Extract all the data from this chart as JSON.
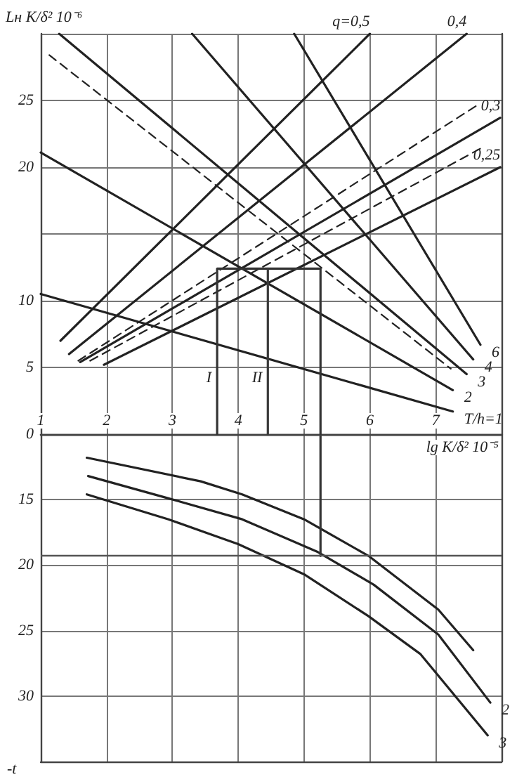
{
  "chart_data": [
    {
      "type": "line",
      "ylabel": "Lн K/δ² 10⁻⁶",
      "xlabel": "lg K/δ² 10⁻⁵",
      "marker": "none",
      "grid": true,
      "xlim": [
        1,
        8
      ],
      "xticks": [
        1,
        2,
        3,
        4,
        5,
        6,
        7
      ],
      "ylim": [
        0,
        30
      ],
      "yticks": [
        0,
        5,
        10,
        20,
        25
      ],
      "series": [
        {
          "name": "q=0,5",
          "color": "#222222",
          "x": [
            1.3,
            6.0
          ],
          "values": [
            7.0,
            30
          ]
        },
        {
          "name": "0,4",
          "color": "#222222",
          "x": [
            1.43,
            7.47
          ],
          "values": [
            6.0,
            30
          ]
        },
        {
          "color": "#222222",
          "line_style": "dashed",
          "x": [
            1.57,
            7.68
          ],
          "values": [
            5.5,
            24.8
          ]
        },
        {
          "name": "0,3",
          "color": "#222222",
          "x": [
            1.6,
            7.98
          ],
          "values": [
            5.4,
            23.7
          ]
        },
        {
          "color": "#222222",
          "line_style": "dashed",
          "x": [
            1.75,
            7.68
          ],
          "values": [
            5.5,
            21.4
          ]
        },
        {
          "name": "0,25",
          "color": "#222222",
          "x": [
            1.96,
            7.98
          ],
          "values": [
            5.2,
            20.0
          ]
        },
        {
          "name": "T/h=1",
          "color": "#222222",
          "x": [
            1,
            7.26
          ],
          "values": [
            10.5,
            1.7
          ]
        },
        {
          "name": "2",
          "color": "#222222",
          "x": [
            1,
            7.26
          ],
          "values": [
            21.1,
            3.3
          ]
        },
        {
          "color": "#222222",
          "line_style": "dashed",
          "x": [
            1.13,
            7.23
          ],
          "values": [
            28.4,
            4.9
          ]
        },
        {
          "name": "3",
          "color": "#222222",
          "x": [
            1.28,
            7.47
          ],
          "values": [
            30,
            4.5
          ]
        },
        {
          "name": "4",
          "color": "#222222",
          "x": [
            3.3,
            7.57
          ],
          "values": [
            30,
            5.6
          ]
        },
        {
          "name": "6",
          "color": "#222222",
          "x": [
            4.85,
            7.68
          ],
          "values": [
            30,
            6.7
          ]
        },
        {
          "name": "I",
          "color": "#333333",
          "x": [
            5.25,
            5.25,
            3.68,
            3.68
          ],
          "values": [
            0,
            12.4,
            12.4,
            0
          ]
        },
        {
          "name": "II",
          "color": "#3a3a3a",
          "x": [
            4.45,
            4.45
          ],
          "values": [
            12.4,
            0
          ]
        }
      ]
    },
    {
      "type": "line",
      "ylabel": "-t",
      "marker": "none",
      "grid": true,
      "tick_labels": "y",
      "xlim": [
        1,
        8
      ],
      "xticks": [
        1,
        2,
        3,
        4,
        5,
        6,
        7
      ],
      "ylim": [
        35,
        10
      ],
      "yticks": [
        15,
        20,
        25,
        30
      ],
      "ref_lines": [
        {
          "axis": "y",
          "value": 19.3,
          "color": "#555555"
        }
      ],
      "series": [
        {
          "color": "#222222",
          "x": [
            1.7,
            3.43,
            4.06,
            5.0,
            5.98,
            7.04,
            7.57
          ],
          "values": [
            11.8,
            13.6,
            14.6,
            16.5,
            19.3,
            23.4,
            26.5
          ]
        },
        {
          "name": "2",
          "color": "#222222",
          "x": [
            1.72,
            2.94,
            4.06,
            5.21,
            6.06,
            7.04,
            7.83
          ],
          "values": [
            13.2,
            14.9,
            16.5,
            19.0,
            21.5,
            25.3,
            30.5
          ]
        },
        {
          "name": "3",
          "color": "#222222",
          "x": [
            1.7,
            2.94,
            4.0,
            5.0,
            5.98,
            6.77,
            7.79
          ],
          "values": [
            14.6,
            16.5,
            18.4,
            20.7,
            23.9,
            26.8,
            33.0
          ]
        },
        {
          "color": "#333333",
          "x": [
            5.25,
            5.25
          ],
          "values": [
            10,
            19.3
          ]
        }
      ]
    }
  ]
}
